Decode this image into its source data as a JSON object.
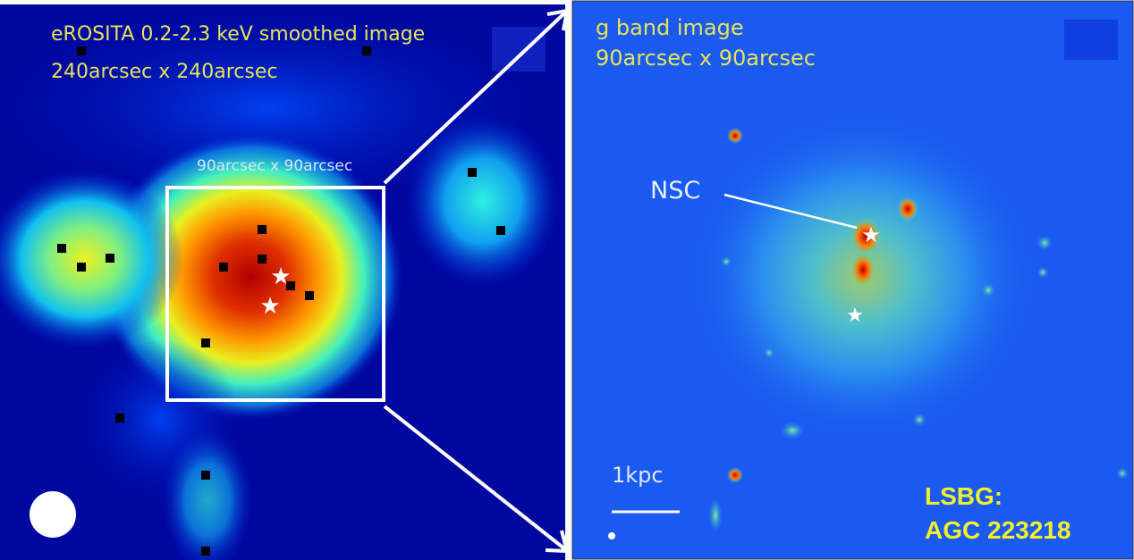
{
  "left_panel": {
    "title_line1": "eROSITA 0.2-2.3 keV smoothed image",
    "title_line2": "240arcsec x 240arcsec",
    "box_label": "90arcsec x 90arcsec"
  },
  "right_panel": {
    "title_line1": "g band image",
    "title_line2": "90arcsec x 90arcsec",
    "nsc_label": "NSC",
    "scale_label": "1kpc",
    "object_line1": "LSBG:",
    "object_line2": "AGC 223218"
  },
  "colors": {
    "background_dark": "#00008a",
    "hot": "#b00000",
    "label_yellow": "#f2f02a"
  }
}
